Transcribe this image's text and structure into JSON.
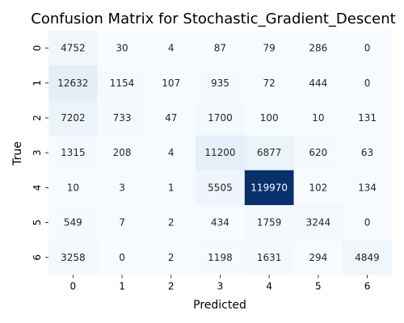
{
  "chart_data": {
    "type": "heatmap",
    "title": "Confusion Matrix for Stochastic_Gradient_Descent",
    "xlabel": "Predicted",
    "ylabel": "True",
    "x_categories": [
      "0",
      "1",
      "2",
      "3",
      "4",
      "5",
      "6"
    ],
    "y_categories": [
      "0",
      "1",
      "2",
      "3",
      "4",
      "5",
      "6"
    ],
    "values": [
      [
        4752,
        30,
        4,
        87,
        79,
        286,
        0
      ],
      [
        12632,
        1154,
        107,
        935,
        72,
        444,
        0
      ],
      [
        7202,
        733,
        47,
        1700,
        100,
        10,
        131
      ],
      [
        1315,
        208,
        4,
        11200,
        6877,
        620,
        63
      ],
      [
        10,
        3,
        1,
        5505,
        119970,
        102,
        134
      ],
      [
        549,
        7,
        2,
        434,
        1759,
        3244,
        0
      ],
      [
        3258,
        0,
        2,
        1198,
        1631,
        294,
        4849
      ]
    ],
    "colormap": "Blues",
    "colors": {
      "low": "#f7fbff",
      "high": "#08306b"
    },
    "colorbar": false,
    "grid": false
  }
}
